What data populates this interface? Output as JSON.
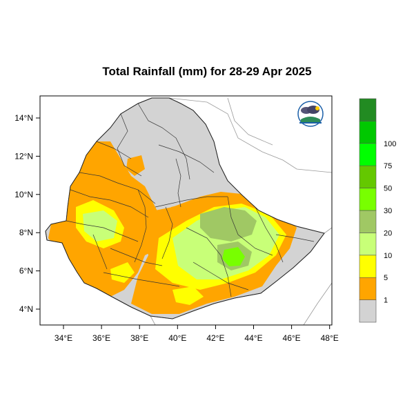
{
  "title": "Total Rainfall (mm) for 28-29 Apr 2025",
  "map": {
    "x_ticks": [
      "34°E",
      "36°E",
      "38°E",
      "40°E",
      "42°E",
      "44°E",
      "46°E",
      "48°E"
    ],
    "y_ticks": [
      "14°N",
      "12°N",
      "10°N",
      "8°N",
      "6°N",
      "4°N"
    ],
    "lon_range": [
      33,
      48
    ],
    "lat_range": [
      3.2,
      15
    ]
  },
  "legend": {
    "colors": [
      "#d3d3d3",
      "#ffa500",
      "#ffff00",
      "#c8ff78",
      "#a0c864",
      "#78ff00",
      "#64c800",
      "#00ff00",
      "#00c800",
      "#228b22"
    ],
    "labels": [
      "1",
      "5",
      "10",
      "20",
      "30",
      "50",
      "75",
      "100"
    ]
  },
  "logo": {
    "icon": "ethiopian-meteorology-institute-logo"
  }
}
